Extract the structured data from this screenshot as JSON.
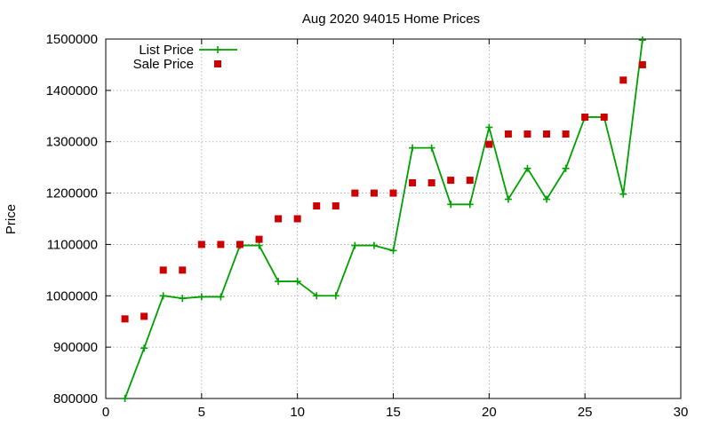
{
  "chart_data": {
    "type": "line",
    "title": "Aug 2020 94015 Home Prices",
    "xlabel": "",
    "ylabel": "Price",
    "xlim": [
      0,
      30
    ],
    "ylim": [
      800000,
      1500000
    ],
    "xticks": [
      0,
      5,
      10,
      15,
      20,
      25,
      30
    ],
    "yticks": [
      800000,
      900000,
      1000000,
      1100000,
      1200000,
      1300000,
      1400000,
      1500000
    ],
    "grid": true,
    "legend_position": "top-left",
    "series": [
      {
        "name": "List Price",
        "style": "line-plus",
        "color": "#00a000",
        "x": [
          1,
          2,
          3,
          4,
          5,
          6,
          7,
          8,
          9,
          10,
          11,
          12,
          13,
          14,
          15,
          16,
          17,
          18,
          19,
          20,
          21,
          22,
          23,
          24,
          25,
          26,
          27,
          28
        ],
        "y": [
          800000,
          898000,
          1000000,
          995000,
          998000,
          998000,
          1098000,
          1098000,
          1028000,
          1028000,
          1000000,
          1000000,
          1098000,
          1098000,
          1088000,
          1288000,
          1288000,
          1178000,
          1178000,
          1328000,
          1188000,
          1248000,
          1188000,
          1248000,
          1348000,
          1348000,
          1198000,
          1498000
        ]
      },
      {
        "name": "Sale Price",
        "style": "square",
        "color": "#cc0000",
        "x": [
          1,
          2,
          3,
          4,
          5,
          6,
          7,
          8,
          9,
          10,
          11,
          12,
          13,
          14,
          15,
          16,
          17,
          18,
          19,
          20,
          21,
          22,
          23,
          24,
          25,
          26,
          27,
          28
        ],
        "y": [
          955000,
          960000,
          1050000,
          1050000,
          1100000,
          1100000,
          1100000,
          1110000,
          1150000,
          1150000,
          1175000,
          1175000,
          1200000,
          1200000,
          1200000,
          1220000,
          1220000,
          1225000,
          1225000,
          1295000,
          1315000,
          1315000,
          1315000,
          1315000,
          1348000,
          1348000,
          1420000,
          1450000
        ]
      }
    ]
  }
}
